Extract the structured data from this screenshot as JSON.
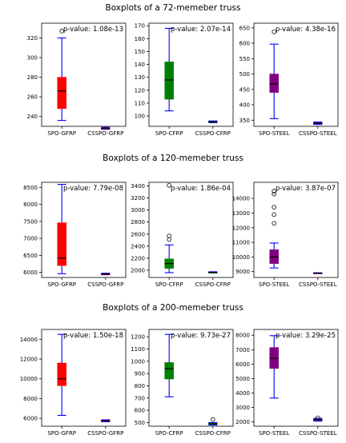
{
  "rows": [
    {
      "title": "Boxplots of a 72-memeber truss"
    },
    {
      "title": "Boxplots of a 120-memeber truss"
    },
    {
      "title": "Boxplots of a 200-memeber truss"
    }
  ],
  "chart_data": [
    {
      "type": "box",
      "row": 0,
      "col": 0,
      "color": "#ff0000",
      "pvalue": "p-value: 1.08e-13",
      "categories": [
        "SPO-GFRP",
        "CSSPO-GFRP"
      ],
      "ylim": [
        230,
        335
      ],
      "yticks": [
        240,
        260,
        280,
        300,
        320
      ],
      "boxes": [
        {
          "whislo": 236,
          "q1": 248,
          "med": 266,
          "q3": 280,
          "whishi": 320,
          "fliers": [
            327
          ]
        },
        {
          "whislo": 227,
          "q1": 227.5,
          "med": 228,
          "q3": 228.5,
          "whishi": 229,
          "fliers": []
        }
      ]
    },
    {
      "type": "box",
      "row": 0,
      "col": 1,
      "color": "#008000",
      "pvalue": "p-value: 2.07e-14",
      "categories": [
        "SPO-CFRP",
        "CSSPO-CFRP"
      ],
      "ylim": [
        92,
        172
      ],
      "yticks": [
        100,
        110,
        120,
        130,
        140,
        150,
        160,
        170
      ],
      "boxes": [
        {
          "whislo": 104,
          "q1": 113,
          "med": 128,
          "q3": 142,
          "whishi": 168,
          "fliers": []
        },
        {
          "whislo": 94.8,
          "q1": 95.2,
          "med": 95.5,
          "q3": 95.8,
          "whishi": 96.2,
          "fliers": []
        }
      ]
    },
    {
      "type": "box",
      "row": 0,
      "col": 2,
      "color": "#800080",
      "pvalue": "p-value: 4.38e-16",
      "categories": [
        "SPO-STEEL",
        "CSSPO-STEEL"
      ],
      "ylim": [
        330,
        665
      ],
      "yticks": [
        350,
        400,
        450,
        500,
        550,
        600,
        650
      ],
      "boxes": [
        {
          "whislo": 355,
          "q1": 440,
          "med": 468,
          "q3": 500,
          "whishi": 597,
          "fliers": [
            637
          ]
        },
        {
          "whislo": 336,
          "q1": 338,
          "med": 340,
          "q3": 342,
          "whishi": 344,
          "fliers": []
        }
      ]
    },
    {
      "type": "box",
      "row": 1,
      "col": 0,
      "color": "#ff0000",
      "pvalue": "p-value: 7.79e-08",
      "categories": [
        "SPO-GFRP",
        "CSSPO-GFRP"
      ],
      "ylim": [
        5850,
        8650
      ],
      "yticks": [
        6000,
        6500,
        7000,
        7500,
        8000,
        8500
      ],
      "boxes": [
        {
          "whislo": 5960,
          "q1": 6200,
          "med": 6420,
          "q3": 7460,
          "whishi": 8590,
          "fliers": []
        },
        {
          "whislo": 5930,
          "q1": 5940,
          "med": 5950,
          "q3": 5960,
          "whishi": 5975,
          "fliers": []
        }
      ]
    },
    {
      "type": "box",
      "row": 1,
      "col": 1,
      "color": "#008000",
      "pvalue": "p-value: 1.86e-04",
      "categories": [
        "SPO-CFRP",
        "CSSPO-CFRP"
      ],
      "ylim": [
        1880,
        3460
      ],
      "yticks": [
        2000,
        2200,
        2400,
        2600,
        2800,
        3000,
        3200,
        3400
      ],
      "boxes": [
        {
          "whislo": 1960,
          "q1": 2030,
          "med": 2110,
          "q3": 2190,
          "whishi": 2420,
          "fliers": [
            2510,
            2570,
            3410
          ]
        },
        {
          "whislo": 1955,
          "q1": 1960,
          "med": 1965,
          "q3": 1970,
          "whishi": 1975,
          "fliers": []
        }
      ]
    },
    {
      "type": "box",
      "row": 1,
      "col": 2,
      "color": "#800080",
      "pvalue": "p-value: 3.87e-07",
      "categories": [
        "SPO-STEEL",
        "CSSPO-STEEL"
      ],
      "ylim": [
        8600,
        15100
      ],
      "yticks": [
        9000,
        10000,
        11000,
        12000,
        13000,
        14000
      ],
      "boxes": [
        {
          "whislo": 9250,
          "q1": 9550,
          "med": 10000,
          "q3": 10500,
          "whishi": 10950,
          "fliers": [
            12300,
            12900,
            13400,
            14300,
            14500
          ]
        },
        {
          "whislo": 8880,
          "q1": 8890,
          "med": 8900,
          "q3": 8910,
          "whishi": 8920,
          "fliers": []
        }
      ]
    },
    {
      "type": "box",
      "row": 2,
      "col": 0,
      "color": "#ff0000",
      "pvalue": "p-value: 1.50e-18",
      "categories": [
        "SPO-GFRP",
        "CSSPO-GFRP"
      ],
      "ylim": [
        5200,
        15000
      ],
      "yticks": [
        6000,
        8000,
        10000,
        12000,
        14000
      ],
      "boxes": [
        {
          "whislo": 6300,
          "q1": 9300,
          "med": 10000,
          "q3": 11600,
          "whishi": 14500,
          "fliers": []
        },
        {
          "whislo": 5650,
          "q1": 5700,
          "med": 5750,
          "q3": 5800,
          "whishi": 5850,
          "fliers": []
        }
      ]
    },
    {
      "type": "box",
      "row": 2,
      "col": 1,
      "color": "#008000",
      "pvalue": "p-value: 9.73e-27",
      "categories": [
        "SPO-CFRP",
        "CSSPO-CFRP"
      ],
      "ylim": [
        470,
        1260
      ],
      "yticks": [
        500,
        600,
        700,
        800,
        900,
        1000,
        1100,
        1200
      ],
      "boxes": [
        {
          "whislo": 710,
          "q1": 855,
          "med": 940,
          "q3": 990,
          "whishi": 1220,
          "fliers": []
        },
        {
          "whislo": 480,
          "q1": 485,
          "med": 490,
          "q3": 495,
          "whishi": 500,
          "fliers": [
            525
          ]
        }
      ]
    },
    {
      "type": "box",
      "row": 2,
      "col": 2,
      "color": "#800080",
      "pvalue": "p-value: 3.29e-25",
      "categories": [
        "SPO-STEEL",
        "CSSPO-STEEL"
      ],
      "ylim": [
        1700,
        8400
      ],
      "yticks": [
        2000,
        3000,
        4000,
        5000,
        6000,
        7000,
        8000
      ],
      "boxes": [
        {
          "whislo": 3650,
          "q1": 5700,
          "med": 6400,
          "q3": 7150,
          "whishi": 7970,
          "fliers": []
        },
        {
          "whislo": 2050,
          "q1": 2100,
          "med": 2150,
          "q3": 2200,
          "whishi": 2250,
          "fliers": [
            2280
          ]
        }
      ]
    }
  ]
}
